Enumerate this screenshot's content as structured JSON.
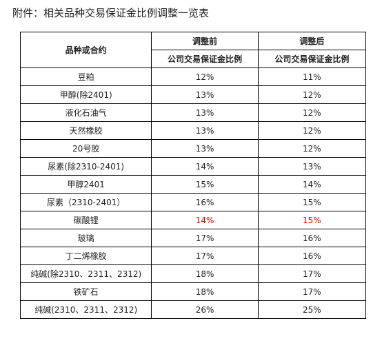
{
  "title": "附件：相关品种交易保证金比例调整一览表",
  "table": {
    "header_product": "品种或合约",
    "header_before": "调整前",
    "header_after": "调整后",
    "sub_before": "公司交易保证金比例",
    "sub_after": "公司交易保证金比例",
    "rows": [
      {
        "name": "豆粕",
        "before": "12%",
        "after": "11%",
        "highlight": false
      },
      {
        "name": "甲醇(除2401)",
        "before": "13%",
        "after": "12%",
        "highlight": false
      },
      {
        "name": "液化石油气",
        "before": "13%",
        "after": "12%",
        "highlight": false
      },
      {
        "name": "天然橡胶",
        "before": "13%",
        "after": "12%",
        "highlight": false
      },
      {
        "name": "20号胶",
        "before": "13%",
        "after": "12%",
        "highlight": false
      },
      {
        "name": "尿素(除2310-2401)",
        "before": "14%",
        "after": "13%",
        "highlight": false
      },
      {
        "name": "甲醇2401",
        "before": "15%",
        "after": "14%",
        "highlight": false
      },
      {
        "name": "尿素（2310-2401）",
        "before": "16%",
        "after": "15%",
        "highlight": false
      },
      {
        "name": "碳酸锂",
        "before": "14%",
        "after": "15%",
        "highlight": true
      },
      {
        "name": "玻璃",
        "before": "17%",
        "after": "16%",
        "highlight": false
      },
      {
        "name": "丁二烯橡胶",
        "before": "17%",
        "after": "16%",
        "highlight": false
      },
      {
        "name": "纯碱(除2310、2311、2312)",
        "before": "18%",
        "after": "17%",
        "highlight": false
      },
      {
        "name": "铁矿石",
        "before": "18%",
        "after": "17%",
        "highlight": false
      },
      {
        "name": "纯碱(2310、2311、2312)",
        "before": "26%",
        "after": "25%",
        "highlight": false
      }
    ]
  },
  "colors": {
    "text": "#222222",
    "border": "#000000",
    "highlight": "#e60000"
  }
}
